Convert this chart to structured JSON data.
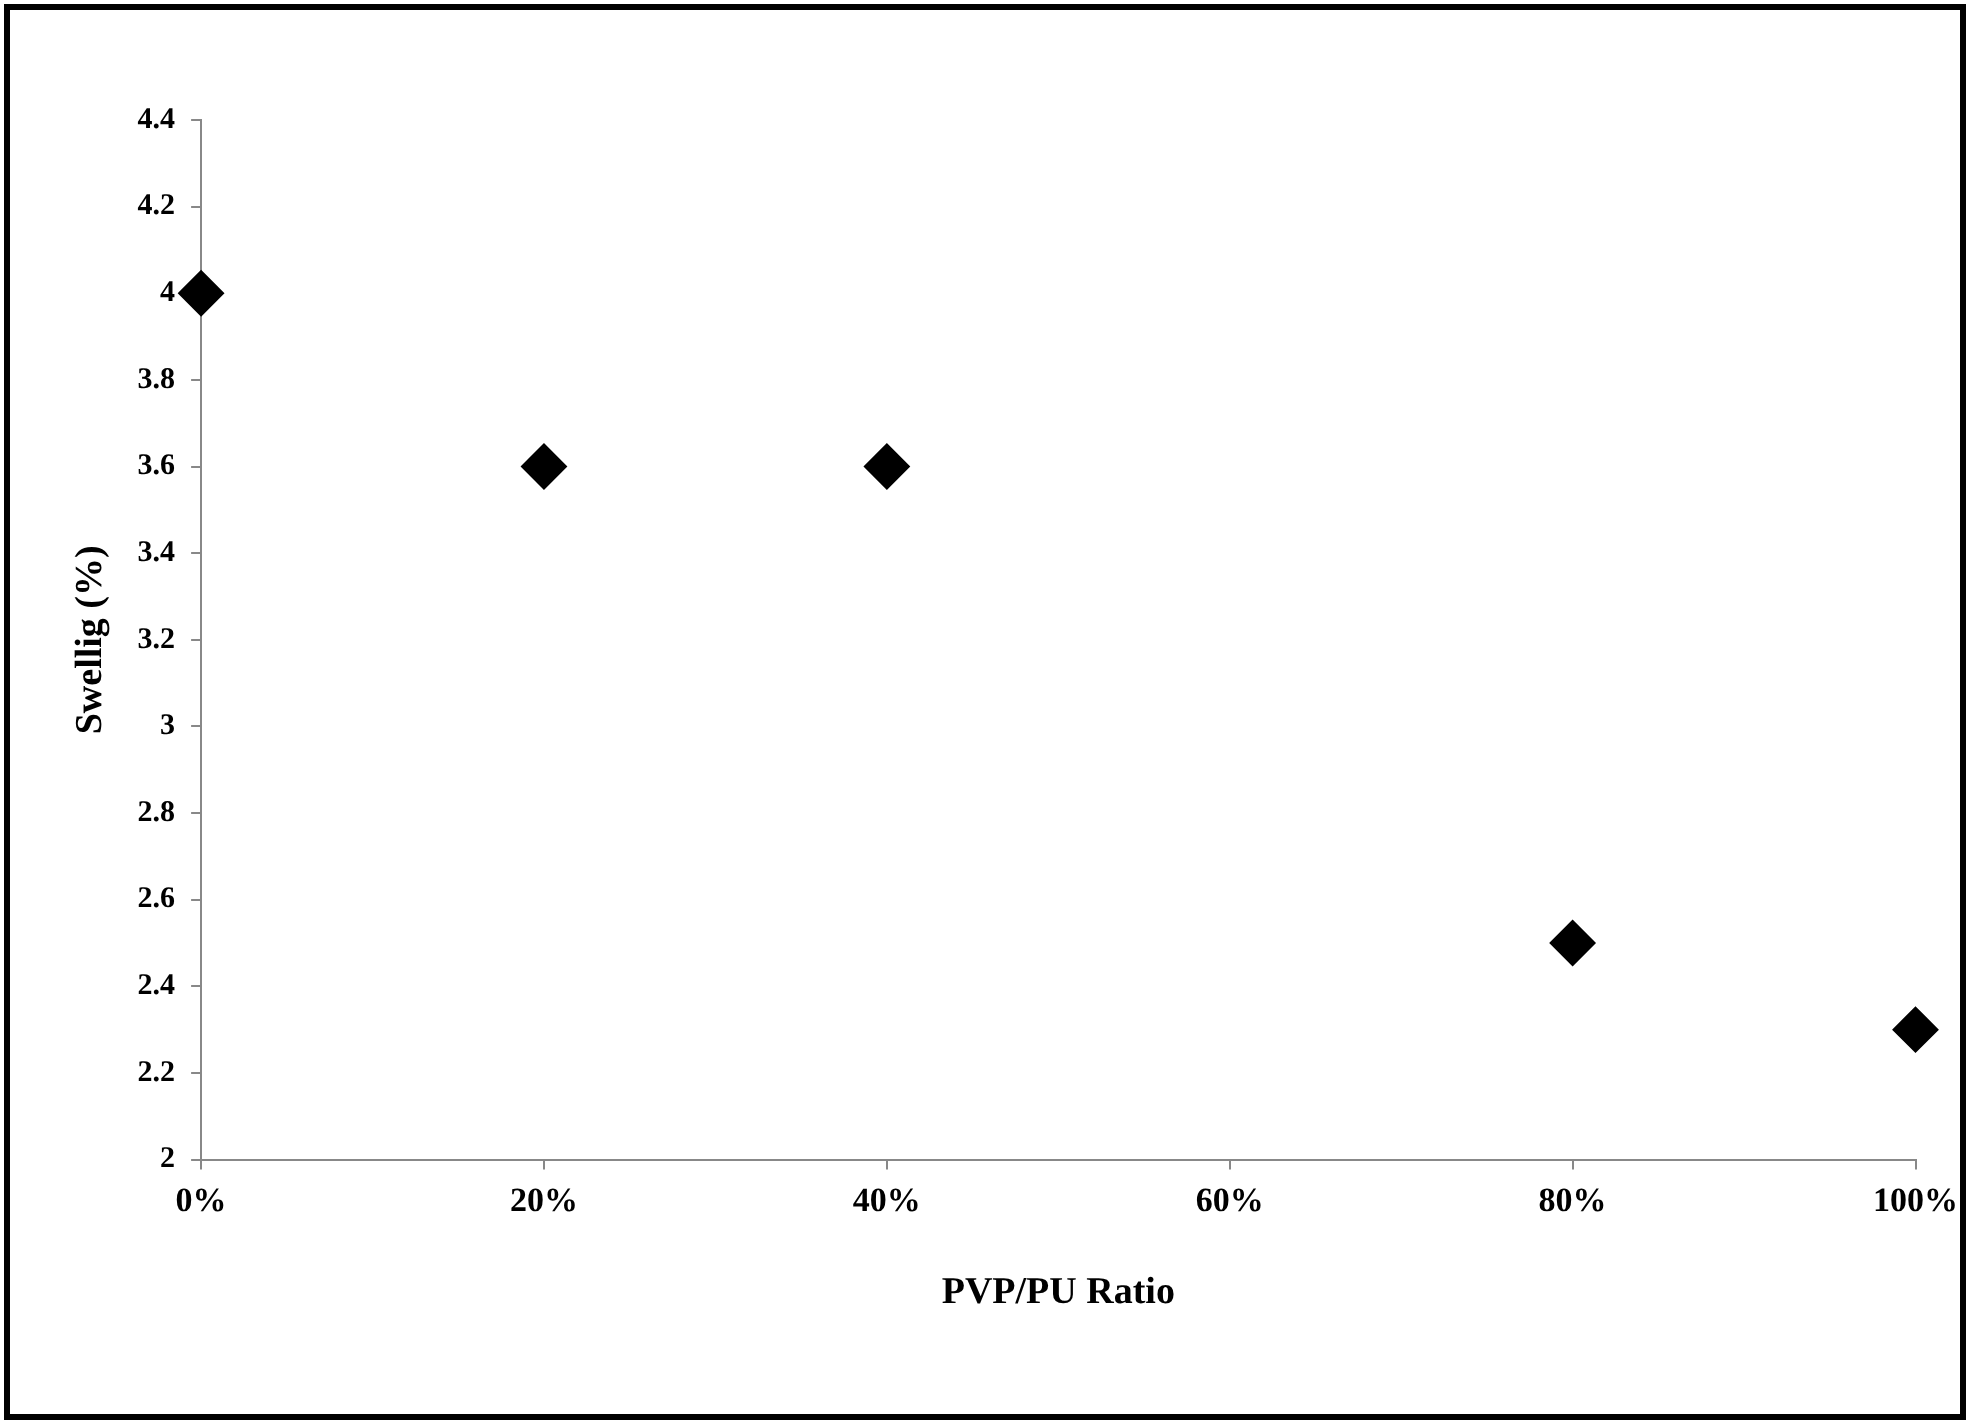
{
  "chart_data": {
    "type": "scatter",
    "xlabel": "PVP/PU Ratio",
    "ylabel": "Swellig (%)",
    "marker": "diamond",
    "x": [
      0,
      20,
      40,
      80,
      100
    ],
    "series": [
      {
        "color": "#000000",
        "values": [
          4,
          3.6,
          3.6,
          2.5,
          2.3
        ]
      }
    ],
    "xlim": [
      0,
      100
    ],
    "xticks": [
      {
        "value": 0,
        "label": "0%"
      },
      {
        "value": 20,
        "label": "20%"
      },
      {
        "value": 40,
        "label": "40%"
      },
      {
        "value": 60,
        "label": "60%"
      },
      {
        "value": 80,
        "label": "80%"
      },
      {
        "value": 100,
        "label": "100%"
      }
    ],
    "ylim": [
      2,
      4.4
    ],
    "yticks": [
      2,
      2.2,
      2.4,
      2.6,
      2.8,
      3,
      3.2,
      3.4,
      3.6,
      3.8,
      4,
      4.2,
      4.4
    ]
  }
}
